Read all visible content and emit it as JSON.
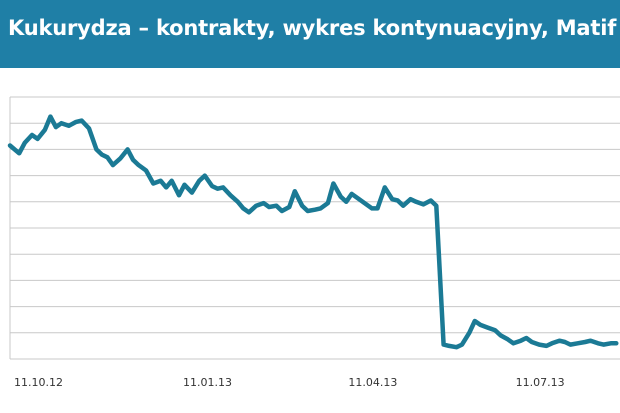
{
  "header": {
    "title": "Kukurydza – kontrakty, wykres kontynuacyjny, Matif"
  },
  "colors": {
    "header_bg": "#1f7fa6",
    "header_text": "#ffffff",
    "line": "#1b7a95",
    "grid": "#c8c8c8"
  },
  "chart_data": {
    "type": "line",
    "title": "Kukurydza – kontrakty, wykres kontynuacyjny, Matif",
    "xlabel": "",
    "ylabel": "",
    "x_tick_labels": [
      "11.10.12",
      "11.01.13",
      "11.04.13",
      "11.07.13"
    ],
    "x_tick_dates": [
      "2012-10-11",
      "2013-01-11",
      "2013-04-11",
      "2013-07-11"
    ],
    "xlim": [
      "2012-10-11",
      "2013-09-08"
    ],
    "ylim": [
      0,
      10
    ],
    "y_gridlines": 10,
    "y_tick_labels_shown": false,
    "grid": "horizontal",
    "series": [
      {
        "x": [
          "2012-10-11",
          "2012-10-16",
          "2012-10-19",
          "2012-10-23",
          "2012-10-26",
          "2012-10-30",
          "2012-11-02",
          "2012-11-05",
          "2012-11-08",
          "2012-11-12",
          "2012-11-16",
          "2012-11-19",
          "2012-11-23",
          "2012-11-27",
          "2012-11-30",
          "2012-12-03",
          "2012-12-06",
          "2012-12-10",
          "2012-12-14",
          "2012-12-17",
          "2012-12-20",
          "2012-12-24",
          "2012-12-28",
          "2013-01-01",
          "2013-01-04",
          "2013-01-07",
          "2013-01-11",
          "2013-01-14",
          "2013-01-18",
          "2013-01-22",
          "2013-01-25",
          "2013-01-29",
          "2013-02-01",
          "2013-02-04",
          "2013-02-08",
          "2013-02-12",
          "2013-02-15",
          "2013-02-18",
          "2013-02-22",
          "2013-02-26",
          "2013-03-01",
          "2013-03-05",
          "2013-03-08",
          "2013-03-12",
          "2013-03-15",
          "2013-03-19",
          "2013-03-22",
          "2013-03-26",
          "2013-03-29",
          "2013-04-02",
          "2013-04-05",
          "2013-04-09",
          "2013-04-12",
          "2013-04-15",
          "2013-04-19",
          "2013-04-23",
          "2013-04-26",
          "2013-04-29",
          "2013-05-03",
          "2013-05-07",
          "2013-05-10",
          "2013-05-13",
          "2013-05-17",
          "2013-05-20",
          "2013-05-24",
          "2013-05-28",
          "2013-05-31",
          "2013-06-04",
          "2013-06-07",
          "2013-06-11",
          "2013-06-14",
          "2013-06-18",
          "2013-06-21",
          "2013-06-24",
          "2013-06-28",
          "2013-07-02",
          "2013-07-05",
          "2013-07-09",
          "2013-07-12",
          "2013-07-16",
          "2013-07-19",
          "2013-07-22",
          "2013-07-26",
          "2013-07-30",
          "2013-08-02",
          "2013-08-06",
          "2013-08-09",
          "2013-08-12",
          "2013-08-16",
          "2013-08-20",
          "2013-08-23",
          "2013-08-27",
          "2013-08-30",
          "2013-09-03",
          "2013-09-06"
        ],
        "values": [
          8.15,
          7.85,
          8.25,
          8.55,
          8.4,
          8.75,
          9.25,
          8.85,
          9.0,
          8.9,
          9.05,
          9.1,
          8.8,
          8.0,
          7.8,
          7.7,
          7.4,
          7.65,
          8.0,
          7.6,
          7.4,
          7.2,
          6.7,
          6.8,
          6.55,
          6.8,
          6.25,
          6.65,
          6.35,
          6.8,
          7.0,
          6.6,
          6.5,
          6.55,
          6.25,
          6.0,
          5.75,
          5.6,
          5.85,
          5.95,
          5.8,
          5.85,
          5.65,
          5.8,
          6.4,
          5.85,
          5.65,
          5.7,
          5.75,
          5.95,
          6.7,
          6.2,
          6.0,
          6.3,
          6.1,
          5.9,
          5.75,
          5.75,
          6.55,
          6.1,
          6.05,
          5.85,
          6.1,
          6.0,
          5.9,
          6.05,
          5.85,
          0.55,
          0.5,
          0.45,
          0.55,
          1.0,
          1.45,
          1.3,
          1.2,
          1.1,
          0.9,
          0.75,
          0.6,
          0.7,
          0.8,
          0.65,
          0.55,
          0.5,
          0.6,
          0.7,
          0.65,
          0.55,
          0.6,
          0.65,
          0.7,
          0.6,
          0.55,
          0.6,
          0.6
        ]
      }
    ]
  }
}
